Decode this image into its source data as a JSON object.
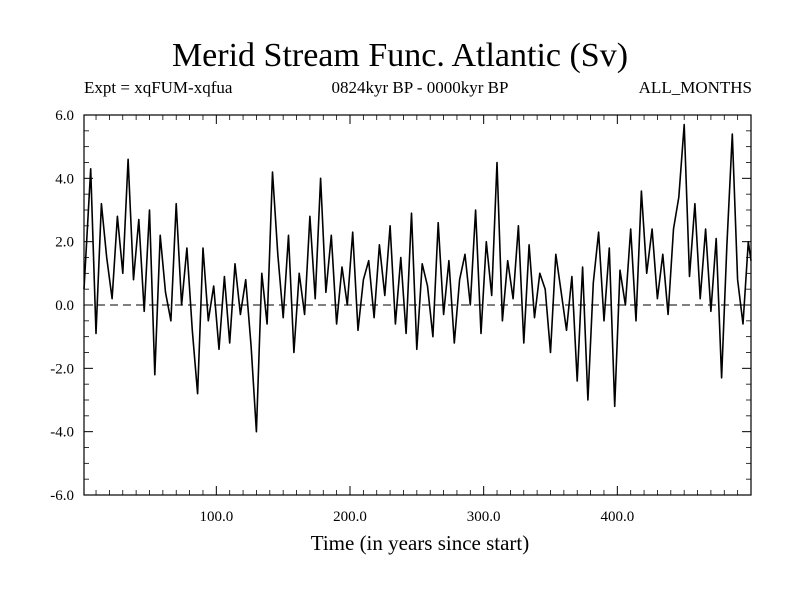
{
  "chart_data": {
    "type": "line",
    "title": "Merid Stream Func. Atlantic (Sv)",
    "subtitle_left": "Expt = xqFUM-xqfua",
    "subtitle_center": "0824kyr BP - 0000kyr BP",
    "subtitle_right": "ALL_MONTHS",
    "xlabel": "Time (in years since start)",
    "ylabel": "",
    "xlim": [
      1,
      500
    ],
    "ylim": [
      -6.0,
      6.0
    ],
    "x_ticks": [
      100,
      200,
      300,
      400
    ],
    "x_tick_labels": [
      "100.0",
      "200.0",
      "300.0",
      "400.0"
    ],
    "y_ticks": [
      -6,
      -4,
      -2,
      0,
      2,
      4,
      6
    ],
    "y_tick_labels": [
      "-6.0",
      "-4.0",
      "-2.0",
      "0.0",
      "2.0",
      "4.0",
      "6.0"
    ],
    "reference_line": {
      "y": 0.0,
      "style": "dashed"
    },
    "series": [
      {
        "name": "Merid Stream Func. Atlantic",
        "x": [
          1,
          6,
          10,
          14,
          18,
          22,
          26,
          30,
          34,
          38,
          42,
          46,
          50,
          54,
          58,
          62,
          66,
          70,
          74,
          78,
          82,
          86,
          90,
          94,
          98,
          102,
          106,
          110,
          114,
          118,
          122,
          126,
          130,
          134,
          138,
          142,
          146,
          150,
          154,
          158,
          162,
          166,
          170,
          174,
          178,
          182,
          186,
          190,
          194,
          198,
          202,
          206,
          210,
          214,
          218,
          222,
          226,
          230,
          234,
          238,
          242,
          246,
          250,
          254,
          258,
          262,
          266,
          270,
          274,
          278,
          282,
          286,
          290,
          294,
          298,
          302,
          306,
          310,
          314,
          318,
          322,
          326,
          330,
          334,
          338,
          342,
          346,
          350,
          354,
          358,
          362,
          366,
          370,
          374,
          378,
          382,
          386,
          390,
          394,
          398,
          402,
          406,
          410,
          414,
          418,
          422,
          426,
          430,
          434,
          438,
          442,
          446,
          450,
          454,
          458,
          462,
          466,
          470,
          474,
          478,
          482,
          486,
          490,
          494,
          498,
          500
        ],
        "values": [
          0.5,
          4.3,
          -0.9,
          3.2,
          1.5,
          0.2,
          2.8,
          1.0,
          4.6,
          0.8,
          2.7,
          -0.2,
          3.0,
          -2.2,
          2.2,
          0.4,
          -0.5,
          3.2,
          0.0,
          1.8,
          -0.8,
          -2.8,
          1.8,
          -0.5,
          0.6,
          -1.4,
          0.9,
          -1.2,
          1.3,
          -0.3,
          0.8,
          -1.3,
          -4.0,
          1.0,
          -0.6,
          4.2,
          1.6,
          -0.4,
          2.2,
          -1.5,
          1.0,
          -0.3,
          2.8,
          0.2,
          4.0,
          0.4,
          2.2,
          -0.6,
          1.2,
          0.0,
          2.3,
          -0.8,
          0.8,
          1.4,
          -0.4,
          1.9,
          0.3,
          2.5,
          -0.6,
          1.5,
          -0.9,
          2.9,
          -1.4,
          1.3,
          0.6,
          -1.0,
          2.6,
          -0.3,
          1.4,
          -1.2,
          0.8,
          1.6,
          0.0,
          3.0,
          -0.9,
          2.0,
          0.3,
          4.5,
          -0.5,
          1.4,
          0.2,
          2.5,
          -1.2,
          1.9,
          -0.4,
          1.0,
          0.5,
          -1.5,
          1.6,
          0.4,
          -0.8,
          0.9,
          -2.4,
          1.2,
          -3.0,
          0.7,
          2.3,
          -0.5,
          1.8,
          -3.2,
          1.1,
          0.0,
          2.4,
          -0.5,
          3.6,
          1.0,
          2.4,
          0.2,
          1.6,
          -0.3,
          2.4,
          3.4,
          5.7,
          0.9,
          3.2,
          0.2,
          2.4,
          -0.2,
          2.1,
          -2.3,
          1.9,
          5.4,
          0.8,
          -0.6,
          2.0,
          1.4
        ]
      }
    ]
  }
}
